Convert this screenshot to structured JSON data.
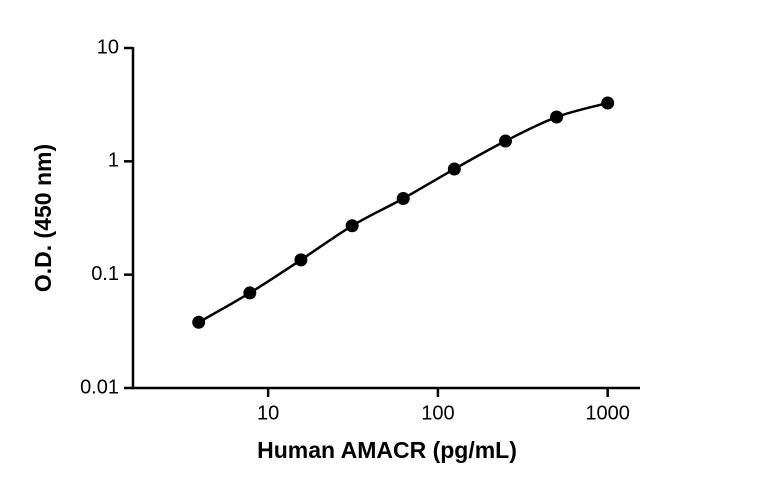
{
  "chart_data": {
    "type": "line",
    "x_label": "Human AMACR (pg/mL)",
    "y_label": "O.D. (450 nm)",
    "x": [
      3.9,
      7.8,
      15.6,
      31.25,
      62.5,
      125,
      250,
      500,
      1000
    ],
    "values": [
      0.038,
      0.069,
      0.135,
      0.27,
      0.47,
      0.855,
      1.51,
      2.46,
      3.27
    ],
    "color": "#000000",
    "markers": true,
    "xscale": "log",
    "yscale": "log",
    "xlim": [
      1.6,
      1550
    ],
    "ylim": [
      0.01,
      10
    ],
    "xticks": [
      10,
      100,
      1000
    ],
    "yticks": [
      0.01,
      0.1,
      1,
      10
    ]
  }
}
